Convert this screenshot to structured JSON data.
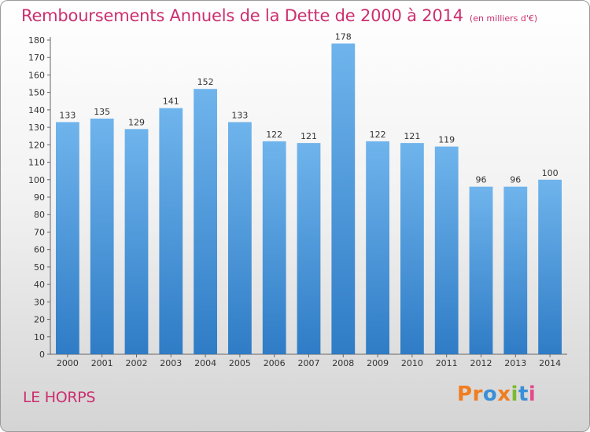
{
  "header": {
    "title": "Remboursements Annuels de la Dette de 2000 à 2014",
    "unit": "(en milliers d'€)"
  },
  "footer": {
    "commune": "LE HORPS",
    "logo_text": "Proxiti",
    "logo_colors": [
      "#f07d1f",
      "#f07d1f",
      "#3a8fd6",
      "#f07d1f",
      "#7cba2f",
      "#3a8fd6",
      "#e64a8c"
    ]
  },
  "colors": {
    "accent": "#cc2f6f",
    "bar_top": "#6fb4ec",
    "bar_bottom": "#2f7cc6"
  },
  "chart_data": {
    "type": "bar",
    "categories": [
      "2000",
      "2001",
      "2002",
      "2003",
      "2004",
      "2005",
      "2006",
      "2007",
      "2008",
      "2009",
      "2010",
      "2011",
      "2012",
      "2013",
      "2014"
    ],
    "values": [
      133,
      135,
      129,
      141,
      152,
      133,
      122,
      121,
      178,
      122,
      121,
      119,
      96,
      96,
      100
    ],
    "title": "Remboursements Annuels de la Dette de 2000 à 2014",
    "xlabel": "",
    "ylabel": "",
    "ylim": [
      0,
      180
    ],
    "ytick_step": 10,
    "grid": false,
    "legend": "none"
  }
}
